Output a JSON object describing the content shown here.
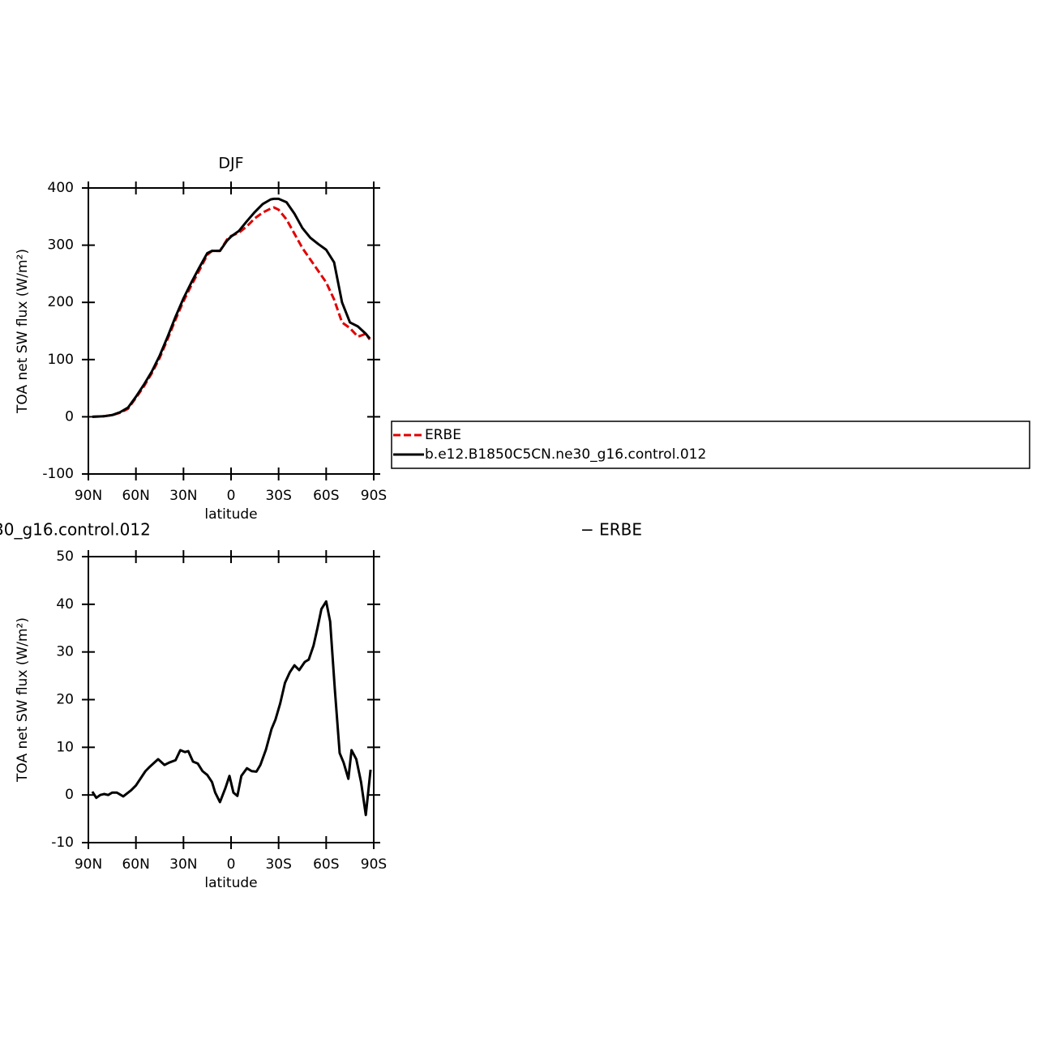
{
  "chart_data": [
    {
      "type": "line",
      "title": "DJF",
      "xlabel": "latitude",
      "ylabel": "TOA net SW flux (W/m²)",
      "xlim": [
        90,
        -90
      ],
      "ylim": [
        -100,
        400
      ],
      "xticks": [
        {
          "value": 90,
          "label": "90N"
        },
        {
          "value": 60,
          "label": "60N"
        },
        {
          "value": 30,
          "label": "30N"
        },
        0,
        {
          "value": -30,
          "label": "30S"
        },
        {
          "value": -60,
          "label": "60S"
        },
        {
          "value": -90,
          "label": "90S"
        }
      ],
      "yticks": [
        -100,
        0,
        100,
        200,
        300,
        400
      ],
      "x": [
        87.5,
        80,
        75,
        70,
        65,
        60,
        55,
        50,
        45,
        40,
        35,
        30,
        25,
        20,
        15,
        12,
        7,
        2.5,
        0,
        -5,
        -10,
        -15,
        -20,
        -25,
        -27,
        -30,
        -35,
        -40,
        -45,
        -50,
        -55,
        -60,
        -65,
        -70,
        -75,
        -80,
        -85,
        -87.5
      ],
      "series": [
        {
          "name": "ERBE",
          "color": "#e00000",
          "dashed": true,
          "values": [
            0,
            1,
            3,
            7,
            14,
            33,
            53,
            76,
            103,
            136,
            170,
            202,
            230,
            256,
            283,
            290,
            290,
            310,
            316,
            322,
            333,
            347,
            357,
            364,
            366,
            362,
            345,
            320,
            295,
            275,
            255,
            235,
            205,
            165,
            155,
            140,
            145,
            135
          ]
        },
        {
          "name": "b.e12.B1850C5CN.ne30_g16.control.012",
          "color": "#000000",
          "dashed": false,
          "values": [
            0,
            1,
            3,
            8,
            16,
            35,
            56,
            79,
            107,
            140,
            175,
            207,
            235,
            261,
            286,
            290,
            290,
            308,
            315,
            325,
            342,
            358,
            372,
            380,
            381,
            381,
            375,
            355,
            330,
            313,
            302,
            292,
            270,
            200,
            165,
            158,
            145,
            137
          ]
        }
      ]
    },
    {
      "type": "line",
      "left_string": "30_g16.control.012",
      "right_string": "− ERBE",
      "xlabel": "latitude",
      "ylabel": "TOA net SW flux (W/m²)",
      "xlim": [
        90,
        -90
      ],
      "ylim": [
        -10,
        50
      ],
      "xticks": [
        {
          "value": 90,
          "label": "90N"
        },
        {
          "value": 60,
          "label": "60N"
        },
        {
          "value": 30,
          "label": "30N"
        },
        0,
        {
          "value": -30,
          "label": "30S"
        },
        {
          "value": -60,
          "label": "60S"
        },
        {
          "value": -90,
          "label": "90S"
        }
      ],
      "yticks": [
        -10,
        0,
        10,
        20,
        30,
        40,
        50
      ],
      "x": [
        87.5,
        85,
        82.5,
        80,
        77.5,
        75,
        72,
        68,
        63,
        60,
        56,
        54,
        51,
        46,
        42,
        39,
        35,
        32,
        29,
        27,
        24,
        21,
        18,
        15,
        12,
        10,
        7,
        3.5,
        1,
        -1.5,
        -4,
        -6.5,
        -10,
        -13,
        -16,
        -18.5,
        -22,
        -25.5,
        -28,
        -31,
        -34,
        -37,
        -40,
        -43,
        -46.5,
        -49,
        -52,
        -54.5,
        -57,
        -60,
        -62.5,
        -65.5,
        -68.5,
        -71,
        -74,
        -76,
        -79,
        -82,
        -85,
        -88
      ],
      "series": [
        {
          "color": "#000000",
          "dashed": false,
          "values": [
            0.7,
            -0.6,
            0,
            0.2,
            0,
            0.5,
            0.5,
            -0.3,
            1,
            2,
            4,
            5,
            6,
            7.5,
            6.3,
            6.8,
            7.3,
            9.4,
            9,
            9.2,
            7,
            6.6,
            5,
            4.2,
            2.7,
            0.5,
            -1.5,
            1.5,
            4,
            0.5,
            -0.2,
            4,
            5.6,
            5,
            4.9,
            6.3,
            9.5,
            13.8,
            15.8,
            19.2,
            23.5,
            25.7,
            27.2,
            26.2,
            27.9,
            28.4,
            31.3,
            35,
            39,
            40.6,
            36.4,
            22,
            8.8,
            6.8,
            3.4,
            9.4,
            7.5,
            2.7,
            -4.2,
            5.3
          ]
        }
      ]
    }
  ]
}
